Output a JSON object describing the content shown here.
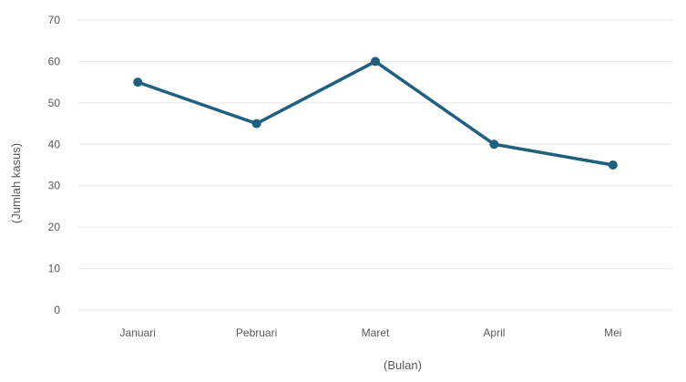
{
  "chart_data": {
    "type": "line",
    "categories": [
      "Januari",
      "Pebruari",
      "Maret",
      "April",
      "Mei"
    ],
    "series": [
      {
        "values": [
          55,
          45,
          60,
          40,
          35
        ]
      }
    ],
    "xlabel": "(Bulan)",
    "ylabel": "(Jumlah kasus)",
    "ylim": [
      0,
      70
    ],
    "yticks": [
      0,
      10,
      20,
      30,
      40,
      50,
      60,
      70
    ],
    "grid": true,
    "legend": "none",
    "colors": {
      "series": "#1f5f7f",
      "grid": "#e3e3e3",
      "text": "#595959"
    }
  }
}
